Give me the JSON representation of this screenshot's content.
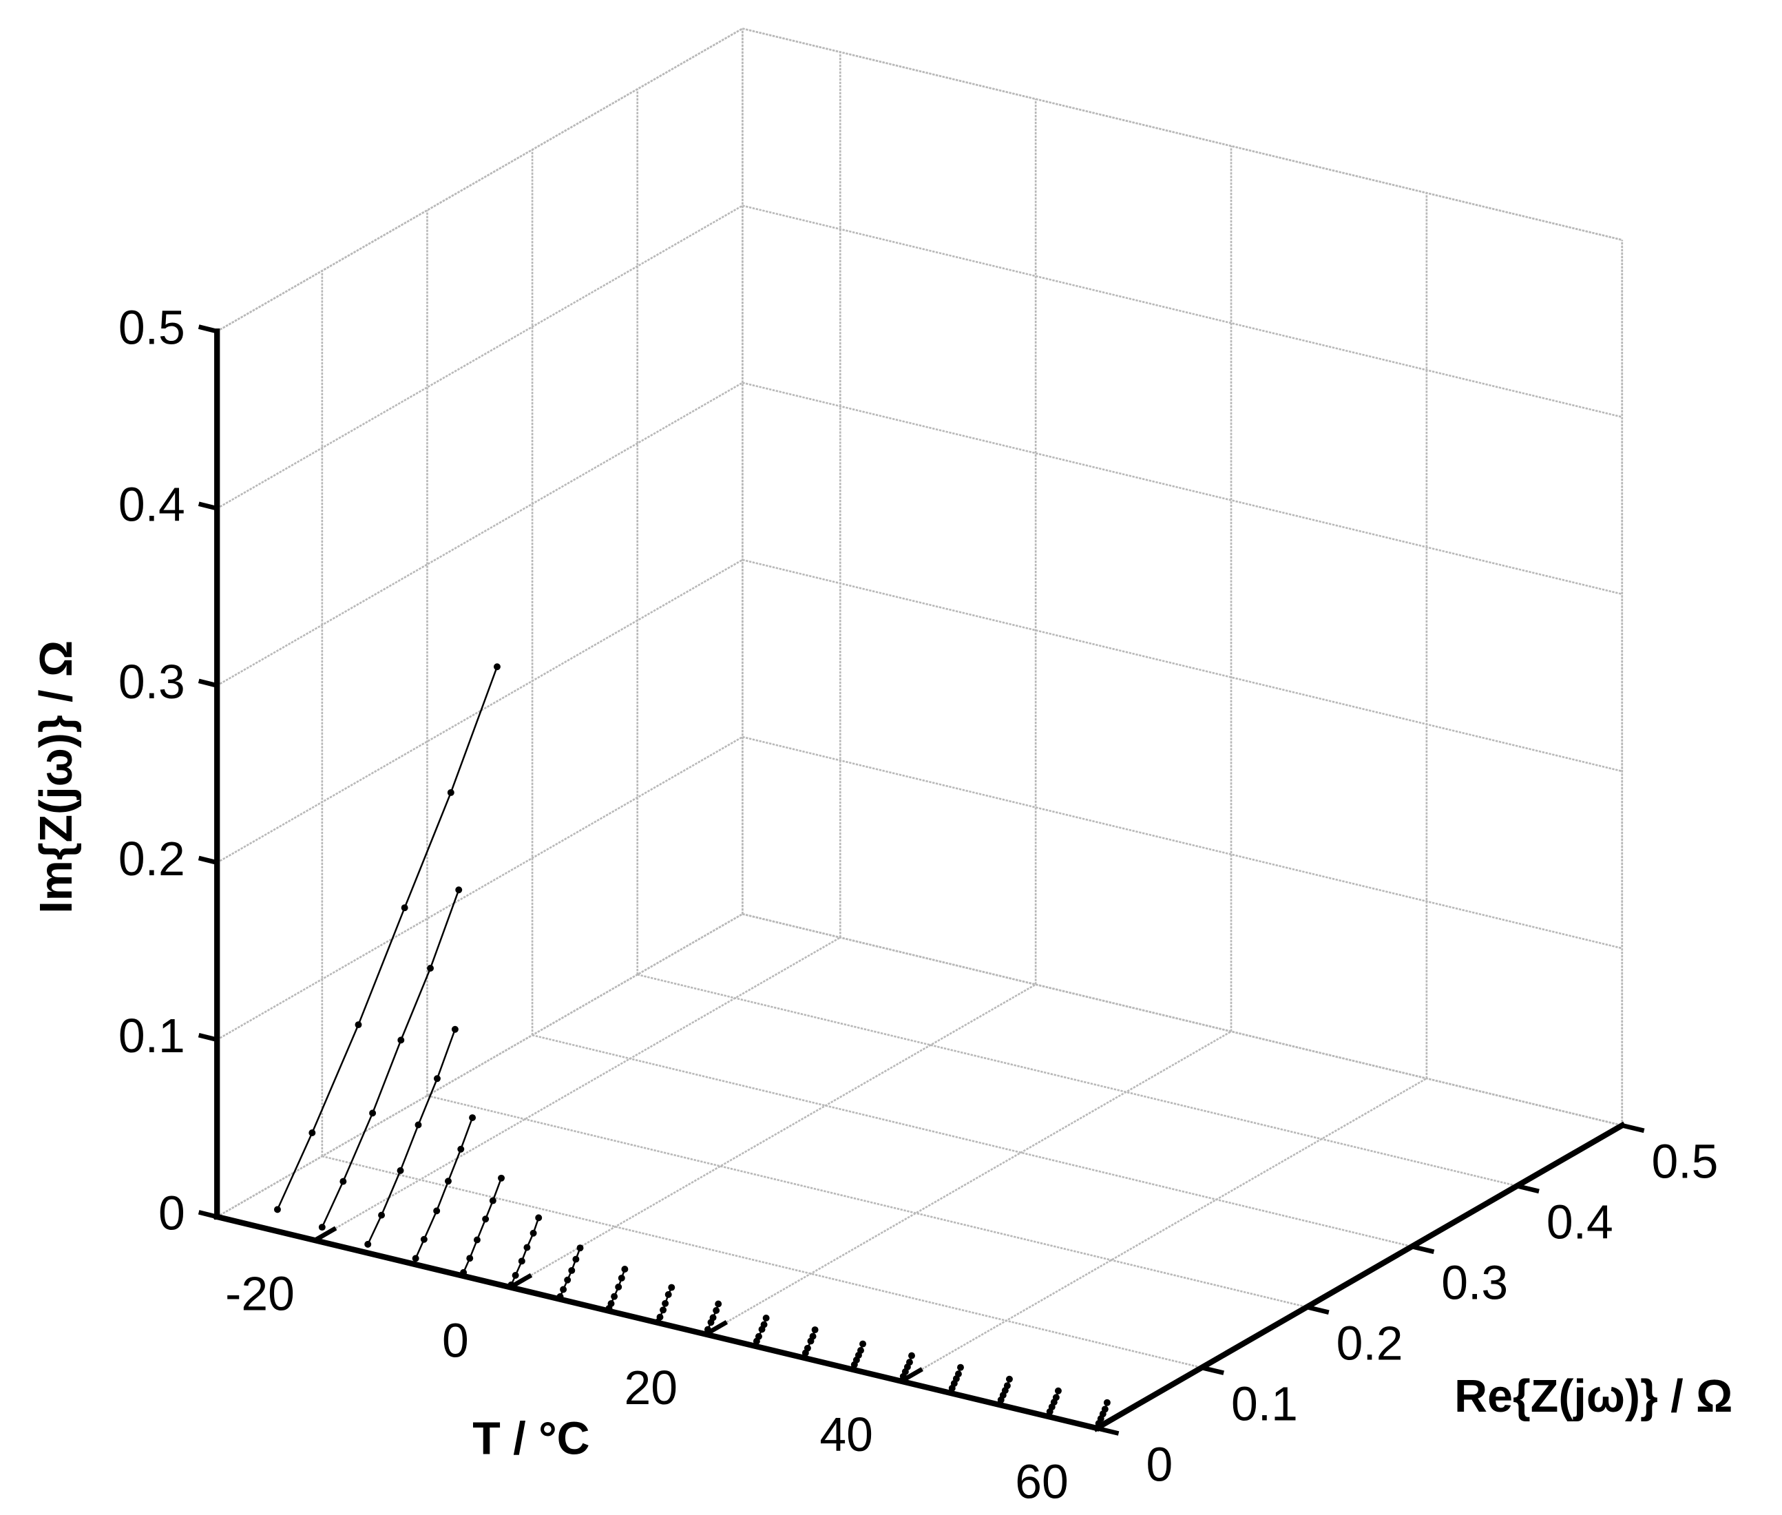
{
  "chart_data": {
    "type": "line3d",
    "x_label": "T / °C",
    "y_label": "Re{Z(jω)} /  Ω",
    "z_label": "Im{Z(jω)} /  Ω",
    "xlim": [
      -30,
      60
    ],
    "xticks": [
      -20,
      0,
      20,
      40,
      60
    ],
    "ylim": [
      0,
      0.5
    ],
    "yticks": [
      0,
      0.1,
      0.2,
      0.3,
      0.4,
      0.5
    ],
    "zlim": [
      0,
      0.5
    ],
    "zticks": [
      0,
      0.1,
      0.2,
      0.3,
      0.4,
      0.5
    ],
    "grid": true,
    "color": "#000000",
    "series": [
      {
        "T": -25,
        "re": [
          0.011,
          0.044,
          0.088,
          0.132,
          0.176,
          0.22
        ],
        "im": [
          0.007,
          0.039,
          0.085,
          0.136,
          0.186,
          0.242
        ]
      },
      {
        "T": -20,
        "re": [
          0.007,
          0.027,
          0.055,
          0.082,
          0.11,
          0.137
        ],
        "im": [
          0.005,
          0.024,
          0.053,
          0.085,
          0.116,
          0.151
        ]
      },
      {
        "T": -15,
        "re": [
          0.004,
          0.017,
          0.035,
          0.052,
          0.07,
          0.087
        ],
        "im": [
          0.003,
          0.015,
          0.034,
          0.054,
          0.074,
          0.096
        ]
      },
      {
        "T": -10,
        "re": [
          0.003,
          0.011,
          0.023,
          0.034,
          0.046,
          0.057
        ],
        "im": [
          0.002,
          0.01,
          0.022,
          0.035,
          0.049,
          0.063
        ]
      },
      {
        "T": -5,
        "re": [
          0.002,
          0.008,
          0.015,
          0.023,
          0.03,
          0.038
        ],
        "im": [
          0.001,
          0.007,
          0.015,
          0.024,
          0.032,
          0.042
        ]
      },
      {
        "T": 0,
        "re": [
          0.001,
          0.005,
          0.011,
          0.016,
          0.022,
          0.027
        ],
        "im": [
          0.001,
          0.005,
          0.011,
          0.017,
          0.023,
          0.03
        ]
      },
      {
        "T": 5,
        "re": [
          0.001,
          0.004,
          0.008,
          0.012,
          0.016,
          0.02
        ],
        "im": [
          0.001,
          0.004,
          0.008,
          0.012,
          0.017,
          0.022
        ]
      },
      {
        "T": 10,
        "re": [
          0.001,
          0.003,
          0.006,
          0.01,
          0.013,
          0.016
        ],
        "im": [
          0.001,
          0.003,
          0.006,
          0.01,
          0.014,
          0.018
        ]
      },
      {
        "T": 15,
        "re": [
          0.001,
          0.003,
          0.006,
          0.008,
          0.011,
          0.014
        ],
        "im": [
          0,
          0.002,
          0.005,
          0.008,
          0.012,
          0.015
        ]
      },
      {
        "T": 20,
        "re": [
          0.001,
          0.002,
          0.005,
          0.007,
          0.01,
          0.012
        ],
        "im": [
          0,
          0.002,
          0.005,
          0.007,
          0.01,
          0.013
        ]
      },
      {
        "T": 25,
        "re": [
          0.001,
          0.002,
          0.004,
          0.007,
          0.009,
          0.011
        ],
        "im": [
          0,
          0.002,
          0.004,
          0.007,
          0.009,
          0.012
        ]
      },
      {
        "T": 30,
        "re": [
          0.001,
          0.002,
          0.004,
          0.007,
          0.009,
          0.011
        ],
        "im": [
          0,
          0.002,
          0.004,
          0.007,
          0.009,
          0.012
        ]
      },
      {
        "T": 35,
        "re": [
          0.001,
          0.002,
          0.004,
          0.006,
          0.008,
          0.01
        ],
        "im": [
          0,
          0.002,
          0.004,
          0.006,
          0.008,
          0.011
        ]
      },
      {
        "T": 40,
        "re": [
          0.001,
          0.002,
          0.004,
          0.006,
          0.008,
          0.01
        ],
        "im": [
          0,
          0.002,
          0.004,
          0.006,
          0.008,
          0.011
        ]
      },
      {
        "T": 45,
        "re": [
          0.001,
          0.002,
          0.004,
          0.006,
          0.008,
          0.01
        ],
        "im": [
          0,
          0.002,
          0.004,
          0.006,
          0.008,
          0.011
        ]
      },
      {
        "T": 50,
        "re": [
          0.001,
          0.002,
          0.004,
          0.006,
          0.008,
          0.01
        ],
        "im": [
          0,
          0.002,
          0.004,
          0.006,
          0.008,
          0.011
        ]
      },
      {
        "T": 55,
        "re": [
          0.001,
          0.002,
          0.004,
          0.006,
          0.008,
          0.01
        ],
        "im": [
          0,
          0.002,
          0.004,
          0.006,
          0.008,
          0.011
        ]
      },
      {
        "T": 60,
        "re": [
          0.001,
          0.002,
          0.004,
          0.006,
          0.008,
          0.01
        ],
        "im": [
          0,
          0.002,
          0.004,
          0.006,
          0.008,
          0.011
        ]
      }
    ]
  }
}
